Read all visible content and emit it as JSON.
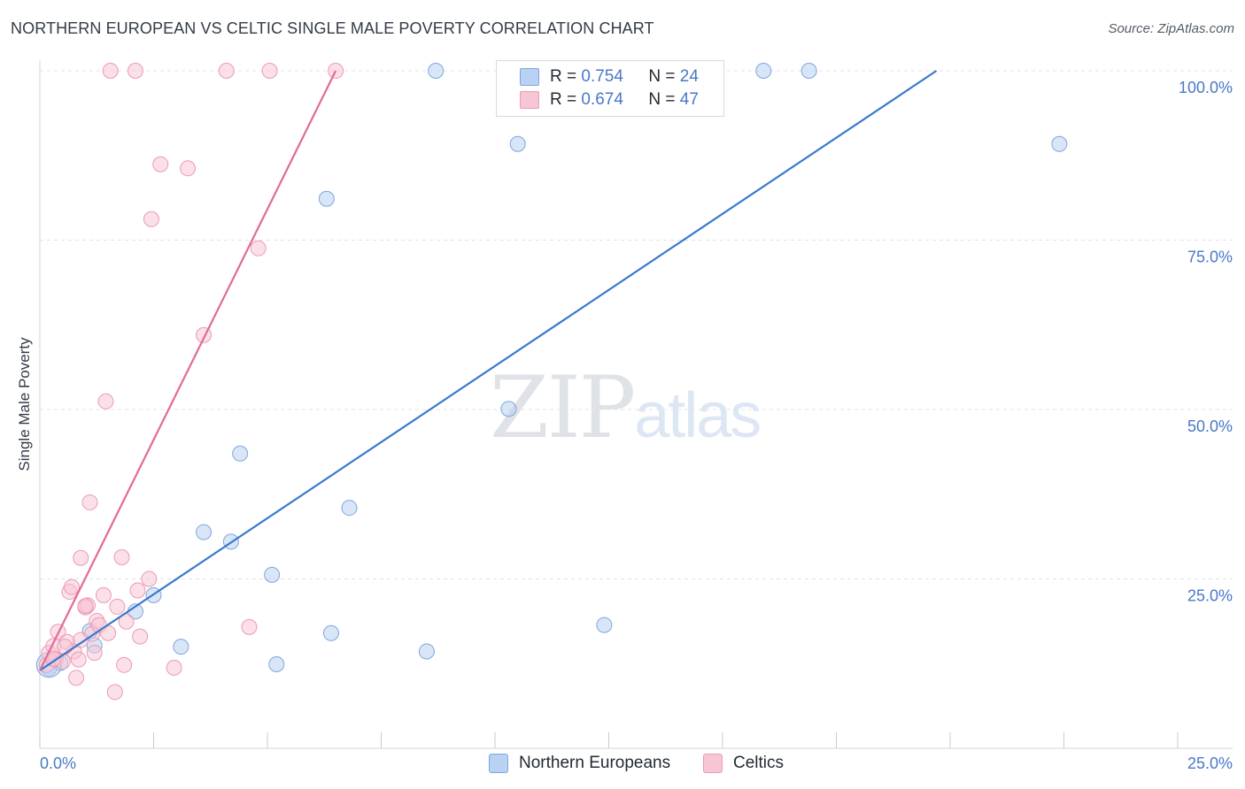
{
  "header": {
    "title": "NORTHERN EUROPEAN VS CELTIC SINGLE MALE POVERTY CORRELATION CHART",
    "source": "Source: ZipAtlas.com"
  },
  "watermark": {
    "zip": "ZIP",
    "atlas": "atlas"
  },
  "legend": {
    "rows": [
      {
        "r_label": "R =",
        "r_value": "0.754",
        "n_label": "N =",
        "n_value": "24"
      },
      {
        "r_label": "R =",
        "r_value": "0.674",
        "n_label": "N =",
        "n_value": "47"
      }
    ]
  },
  "bottom_legend": [
    "Northern Europeans",
    "Celtics"
  ],
  "colors": {
    "blue_fill": "#b9d2f3",
    "blue_stroke": "#7ea6dd",
    "blue_line": "#3a78cc",
    "pink_fill": "#f7c6d5",
    "pink_stroke": "#ec9ab4",
    "pink_line": "#e26a96",
    "grid": "#dfe3e8",
    "tick_text": "#4a78c6"
  },
  "chart_data": {
    "type": "scatter",
    "title": "NORTHERN EUROPEAN VS CELTIC SINGLE MALE POVERTY CORRELATION CHART",
    "xlabel": "",
    "ylabel": "Single Male Poverty",
    "xlim": [
      0,
      25
    ],
    "ylim": [
      0,
      100
    ],
    "x_tick_labels": [
      "0.0%",
      "25.0%"
    ],
    "y_tick_labels": [
      "25.0%",
      "50.0%",
      "75.0%",
      "100.0%"
    ],
    "y_tick_values": [
      25,
      50,
      75,
      100
    ],
    "grid": true,
    "legend_position": "top-center",
    "series": [
      {
        "name": "Northern Europeans",
        "color": "#b9d2f3",
        "r": 0.754,
        "n": 24,
        "points": [
          [
            0.2,
            11.8
          ],
          [
            0.45,
            12.6
          ],
          [
            1.1,
            17.3
          ],
          [
            1.2,
            15.2
          ],
          [
            2.1,
            20.2
          ],
          [
            2.5,
            22.6
          ],
          [
            3.1,
            15.0
          ],
          [
            3.6,
            31.9
          ],
          [
            4.4,
            43.5
          ],
          [
            4.2,
            30.5
          ],
          [
            5.2,
            12.4
          ],
          [
            5.1,
            25.6
          ],
          [
            6.3,
            81.1
          ],
          [
            6.4,
            17.0
          ],
          [
            6.8,
            35.5
          ],
          [
            8.5,
            14.3
          ],
          [
            8.7,
            100.0
          ],
          [
            10.3,
            50.1
          ],
          [
            10.5,
            89.2
          ],
          [
            12.4,
            18.2
          ],
          [
            14.1,
            100.0
          ],
          [
            15.9,
            100.0
          ],
          [
            16.9,
            100.0
          ],
          [
            22.4,
            89.2
          ]
        ],
        "trend": {
          "x": [
            0.0,
            19.7
          ],
          "y": [
            11.5,
            100.0
          ]
        }
      },
      {
        "name": "Celtics",
        "color": "#f7c6d5",
        "r": 0.674,
        "n": 47,
        "points": [
          [
            0.15,
            12.3
          ],
          [
            0.2,
            14.1
          ],
          [
            0.3,
            15.1
          ],
          [
            0.35,
            13.1
          ],
          [
            0.4,
            17.2
          ],
          [
            0.5,
            12.8
          ],
          [
            0.6,
            15.7
          ],
          [
            0.65,
            23.1
          ],
          [
            0.7,
            23.8
          ],
          [
            0.75,
            14.3
          ],
          [
            0.8,
            10.4
          ],
          [
            0.85,
            13.1
          ],
          [
            0.9,
            28.1
          ],
          [
            1.0,
            20.8
          ],
          [
            1.05,
            21.1
          ],
          [
            1.1,
            36.3
          ],
          [
            1.15,
            16.9
          ],
          [
            1.2,
            14.1
          ],
          [
            1.25,
            18.8
          ],
          [
            1.3,
            18.2
          ],
          [
            1.4,
            22.6
          ],
          [
            1.45,
            51.2
          ],
          [
            1.5,
            17.0
          ],
          [
            1.55,
            100.0
          ],
          [
            1.65,
            8.3
          ],
          [
            1.7,
            20.9
          ],
          [
            1.8,
            28.2
          ],
          [
            1.85,
            12.3
          ],
          [
            1.9,
            18.7
          ],
          [
            2.1,
            100.0
          ],
          [
            2.15,
            23.3
          ],
          [
            2.2,
            16.5
          ],
          [
            2.4,
            25.0
          ],
          [
            2.45,
            78.1
          ],
          [
            2.65,
            86.2
          ],
          [
            2.95,
            11.9
          ],
          [
            3.25,
            85.6
          ],
          [
            3.6,
            61.0
          ],
          [
            4.1,
            100.0
          ],
          [
            4.6,
            17.9
          ],
          [
            4.8,
            73.8
          ],
          [
            5.05,
            100.0
          ],
          [
            6.5,
            100.0
          ],
          [
            0.3,
            13.2
          ],
          [
            0.55,
            15.0
          ],
          [
            1.0,
            21.0
          ],
          [
            0.9,
            16.0
          ]
        ],
        "trend": {
          "x": [
            0.0,
            6.5
          ],
          "y": [
            11.5,
            100.0
          ]
        }
      }
    ]
  }
}
